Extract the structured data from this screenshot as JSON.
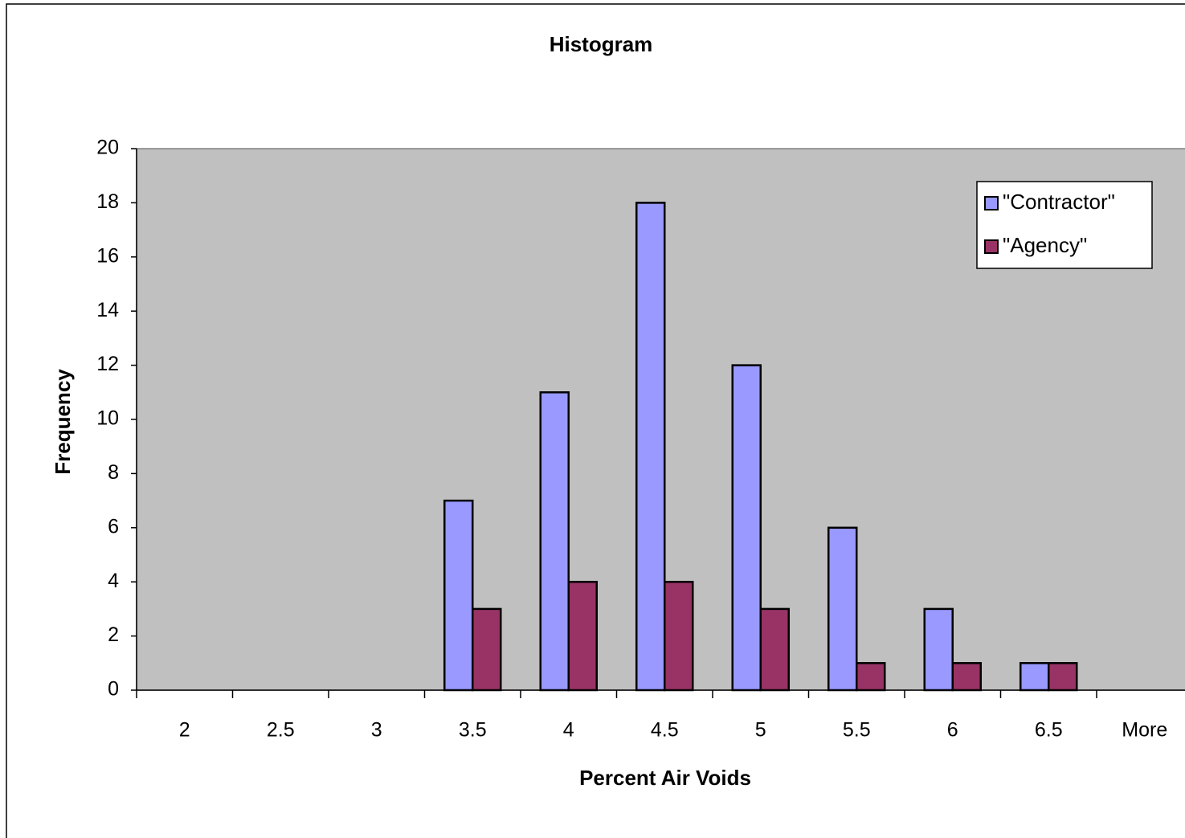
{
  "chart_data": {
    "type": "bar",
    "title": "Histogram",
    "x_label": "Percent Air Voids",
    "y_label": "Frequency",
    "categories": [
      "2",
      "2.5",
      "3",
      "3.5",
      "4",
      "4.5",
      "5",
      "5.5",
      "6",
      "6.5",
      "More"
    ],
    "series": [
      {
        "name": "\"Contractor\"",
        "color": "#9999ff",
        "values": [
          0,
          0,
          0,
          7,
          11,
          18,
          12,
          6,
          3,
          1,
          0
        ]
      },
      {
        "name": "\"Agency\"",
        "color": "#993366",
        "values": [
          0,
          0,
          0,
          3,
          4,
          4,
          3,
          1,
          1,
          1,
          0
        ]
      }
    ],
    "ylim": [
      0,
      20
    ],
    "yticks": [
      0,
      2,
      4,
      6,
      8,
      10,
      12,
      14,
      16,
      18,
      20
    ],
    "grid": false,
    "legend": "upper right",
    "plot_background": "#c0c0c0"
  }
}
